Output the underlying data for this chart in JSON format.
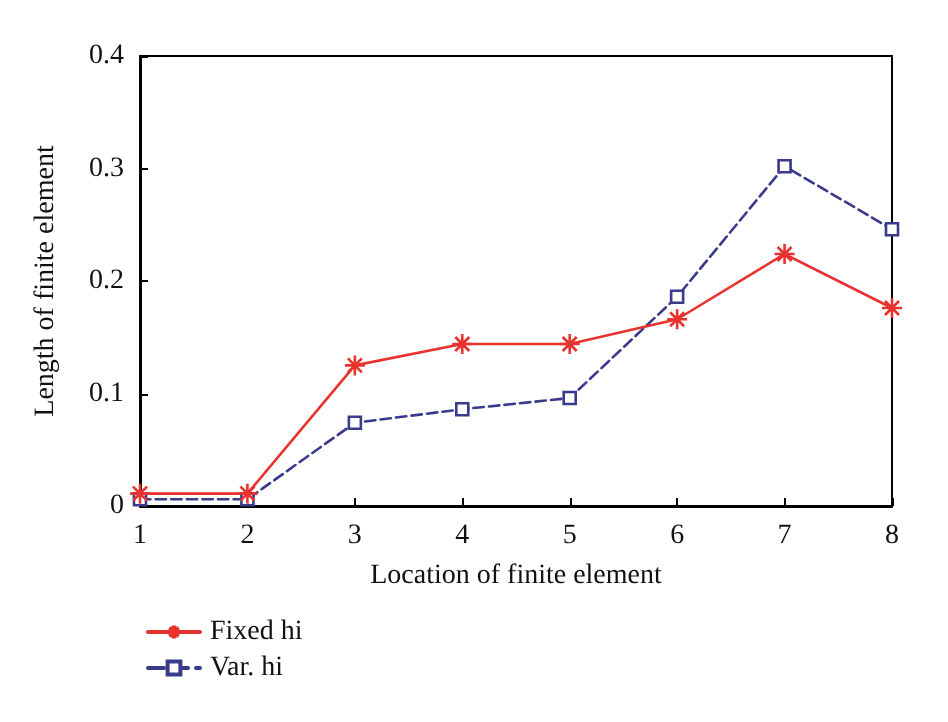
{
  "chart_data": {
    "type": "line",
    "xlabel": "Location of finite element",
    "ylabel": "Length of finite element",
    "x": [
      1,
      2,
      3,
      4,
      5,
      6,
      7,
      8
    ],
    "xlim": [
      1,
      8
    ],
    "xticks": [
      1,
      2,
      3,
      4,
      5,
      6,
      7,
      8
    ],
    "ylim": [
      0,
      0.4
    ],
    "yticks": [
      0,
      0.1,
      0.2,
      0.3,
      0.4
    ],
    "grid": false,
    "legend": "bottom left",
    "series": [
      {
        "name": "Fixed hi",
        "color": "#e8322d",
        "marker": "cross",
        "line_style": "solid",
        "values": [
          0.011,
          0.011,
          0.125,
          0.144,
          0.144,
          0.166,
          0.224,
          0.176
        ]
      },
      {
        "name": "Var. hi",
        "color": "#3a3a8c",
        "marker": "square",
        "line_style": "dashed",
        "values": [
          0.006,
          0.006,
          0.074,
          0.086,
          0.096,
          0.186,
          0.302,
          0.246
        ]
      }
    ]
  }
}
